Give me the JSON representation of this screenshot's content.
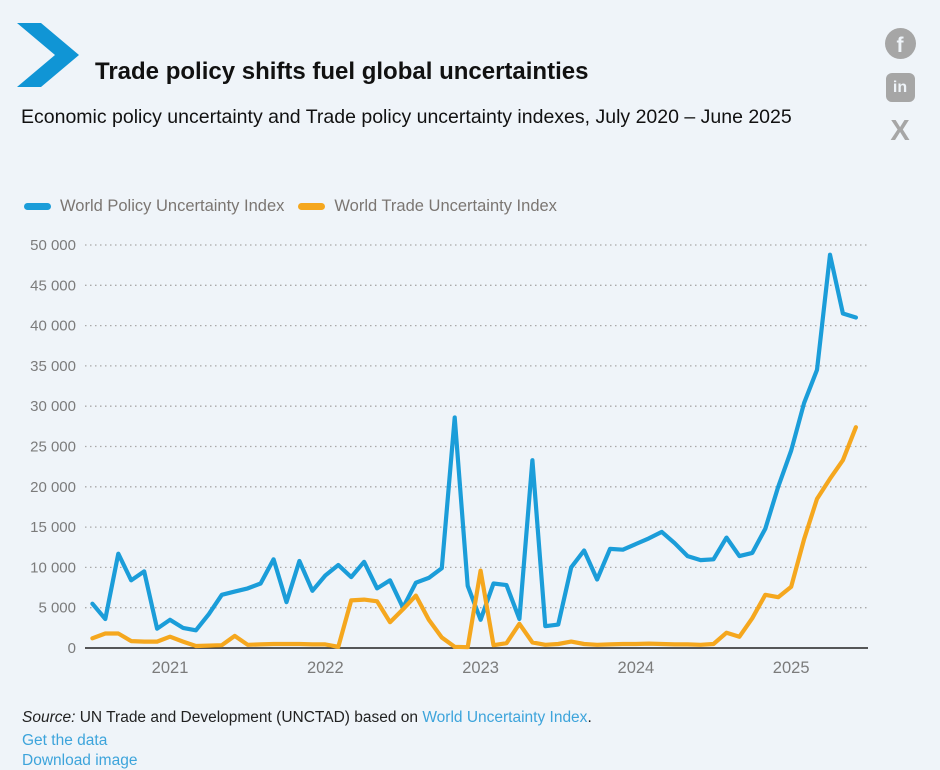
{
  "header": {
    "title": "Trade policy shifts fuel global uncertainties",
    "subtitle": "Economic policy uncertainty and Trade policy uncertainty indexes, July 2020 – June 2025"
  },
  "social": {
    "facebook_glyph": "f",
    "linkedin_glyph": "in",
    "x_glyph": "X"
  },
  "colors": {
    "background": "#eff4f9",
    "accent_blue": "#1095d5",
    "line_blue": "#1b9dd9",
    "line_orange": "#f5a71e",
    "link_blue": "#3da4db",
    "axis_text_gray": "#7b7b7b",
    "grid_gray": "#a9a9a9",
    "axis_line_dark": "#222222",
    "social_gray": "#a6a6a6"
  },
  "chart_data": {
    "type": "line",
    "title": "Economic policy uncertainty and Trade policy uncertainty indexes, July 2020 – June 2025",
    "xlabel": "",
    "ylabel": "",
    "ylim": [
      0,
      50000
    ],
    "grid": "horizontal-dotted",
    "legend_position": "top-left",
    "ytick_labels": [
      "0",
      "5 000",
      "10 000",
      "15 000",
      "20 000",
      "25 000",
      "30 000",
      "35 000",
      "40 000",
      "45 000",
      "50 000"
    ],
    "xtick_labels": [
      "2021",
      "2022",
      "2023",
      "2024",
      "2025"
    ],
    "x": [
      "2020-07",
      "2020-08",
      "2020-09",
      "2020-10",
      "2020-11",
      "2020-12",
      "2021-01",
      "2021-02",
      "2021-03",
      "2021-04",
      "2021-05",
      "2021-06",
      "2021-07",
      "2021-08",
      "2021-09",
      "2021-10",
      "2021-11",
      "2021-12",
      "2022-01",
      "2022-02",
      "2022-03",
      "2022-04",
      "2022-05",
      "2022-06",
      "2022-07",
      "2022-08",
      "2022-09",
      "2022-10",
      "2022-11",
      "2022-12",
      "2023-01",
      "2023-02",
      "2023-03",
      "2023-04",
      "2023-05",
      "2023-06",
      "2023-07",
      "2023-08",
      "2023-09",
      "2023-10",
      "2023-11",
      "2023-12",
      "2024-01",
      "2024-02",
      "2024-03",
      "2024-04",
      "2024-05",
      "2024-06",
      "2024-07",
      "2024-08",
      "2024-09",
      "2024-10",
      "2024-11",
      "2024-12",
      "2025-01",
      "2025-02",
      "2025-03",
      "2025-04",
      "2025-05",
      "2025-06"
    ],
    "series": [
      {
        "name": "World Policy Uncertainty Index",
        "color": "#1b9dd9",
        "values": [
          5500,
          3600,
          11700,
          8400,
          9500,
          2400,
          3500,
          2500,
          2200,
          4200,
          6600,
          7000,
          7400,
          8000,
          11000,
          5700,
          10800,
          7100,
          9000,
          10300,
          8800,
          10700,
          7400,
          8400,
          5000,
          8100,
          8700,
          9900,
          28600,
          7700,
          3500,
          8000,
          7800,
          3600,
          23300,
          2700,
          2900,
          10000,
          12100,
          8500,
          12300,
          12200,
          12900,
          13600,
          14400,
          13000,
          11400,
          10900,
          11000,
          13700,
          11400,
          11800,
          14800,
          20000,
          24500,
          30400,
          34500,
          48800,
          41500,
          41000
        ]
      },
      {
        "name": "World Trade Uncertainty Index",
        "color": "#f5a71e",
        "values": [
          1200,
          1800,
          1800,
          850,
          800,
          800,
          1400,
          800,
          250,
          300,
          350,
          1500,
          400,
          450,
          500,
          500,
          500,
          450,
          450,
          150,
          5900,
          6000,
          5800,
          3200,
          4800,
          6500,
          3500,
          1300,
          150,
          100,
          9600,
          350,
          600,
          3000,
          700,
          400,
          500,
          800,
          500,
          400,
          450,
          500,
          500,
          550,
          500,
          450,
          450,
          400,
          500,
          1900,
          1400,
          3700,
          6600,
          6300,
          7600,
          13500,
          18500,
          21000,
          23300,
          27400
        ]
      }
    ]
  },
  "footer": {
    "source_prefix": "Source:",
    "source_text": " UN Trade and Development (UNCTAD) based on ",
    "source_link": "World Uncertainty Index",
    "source_suffix": ".",
    "get_data_label": "Get the data",
    "download_image_label": "Download image"
  }
}
